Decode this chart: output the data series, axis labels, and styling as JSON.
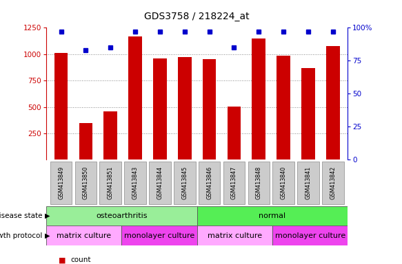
{
  "title": "GDS3758 / 218224_at",
  "samples": [
    "GSM413849",
    "GSM413850",
    "GSM413851",
    "GSM413843",
    "GSM413844",
    "GSM413845",
    "GSM413846",
    "GSM413847",
    "GSM413848",
    "GSM413840",
    "GSM413841",
    "GSM413842"
  ],
  "counts": [
    1010,
    345,
    455,
    1165,
    960,
    975,
    955,
    505,
    1150,
    985,
    865,
    1075
  ],
  "percentile_ranks": [
    97,
    83,
    85,
    97,
    97,
    97,
    97,
    85,
    97,
    97,
    97,
    97
  ],
  "count_ylim": [
    0,
    1250
  ],
  "count_yticks": [
    250,
    500,
    750,
    1000,
    1250
  ],
  "percentile_ylim": [
    0,
    100
  ],
  "percentile_yticks": [
    0,
    25,
    50,
    75,
    100
  ],
  "bar_color": "#cc0000",
  "dot_color": "#0000cc",
  "bar_width": 0.55,
  "disease_state_groups": [
    {
      "label": "osteoarthritis",
      "start": 0,
      "end": 6,
      "color": "#99ee99"
    },
    {
      "label": "normal",
      "start": 6,
      "end": 12,
      "color": "#55ee55"
    }
  ],
  "growth_protocol_groups": [
    {
      "label": "matrix culture",
      "start": 0,
      "end": 3,
      "color": "#ffaaff"
    },
    {
      "label": "monolayer culture",
      "start": 3,
      "end": 6,
      "color": "#ee44ee"
    },
    {
      "label": "matrix culture",
      "start": 6,
      "end": 9,
      "color": "#ffaaff"
    },
    {
      "label": "monolayer culture",
      "start": 9,
      "end": 12,
      "color": "#ee44ee"
    }
  ],
  "legend_count_color": "#cc0000",
  "legend_dot_color": "#0000cc",
  "left_label_color": "#cc0000",
  "right_label_color": "#0000cc",
  "tick_bg_color": "#cccccc",
  "grid_color": "#888888",
  "bg_color": "#ffffff"
}
